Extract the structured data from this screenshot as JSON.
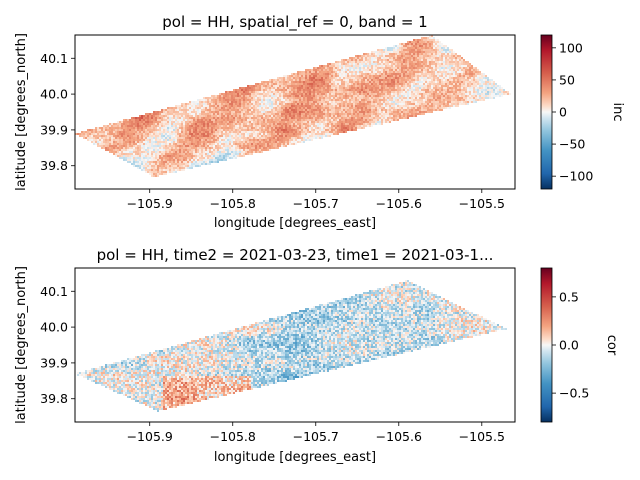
{
  "chart_data": [
    {
      "type": "heatmap",
      "title": "pol = HH, spatial_ref = 0, band = 1",
      "xlabel": "longitude [degrees_east]",
      "ylabel": "latitude [degrees_north]",
      "xlim": [
        -105.99,
        -105.46
      ],
      "ylim": [
        39.735,
        40.165
      ],
      "x_ticks": [
        -105.9,
        -105.8,
        -105.7,
        -105.6,
        -105.5
      ],
      "x_tick_labels": [
        "−105.9",
        "−105.8",
        "−105.7",
        "−105.6",
        "−105.5"
      ],
      "y_ticks": [
        40.1,
        40.0,
        39.9,
        39.8
      ],
      "y_tick_labels": [
        "40.1",
        "40.0",
        "39.9",
        "39.8"
      ],
      "colorbar": {
        "label": "inc",
        "colormap": "RdBu_r",
        "vmin": -120,
        "vmax": 120,
        "ticks": [
          100,
          50,
          0,
          -50,
          -100
        ],
        "tick_labels": [
          "100",
          "50",
          "0",
          "−50",
          "−100"
        ]
      },
      "footprint": [
        [
          -105.99,
          39.89
        ],
        [
          -105.56,
          40.165
        ],
        [
          -105.465,
          40.0
        ],
        [
          -105.895,
          39.768
        ]
      ],
      "colors": {
        "high": "#b2182b",
        "mid": "#f7f7f7",
        "low": "#2166ac"
      }
    },
    {
      "type": "heatmap",
      "title": "pol = HH, time2 = 2021-03-23, time1 = 2021-03-1...",
      "xlabel": "longitude [degrees_east]",
      "ylabel": "latitude [degrees_north]",
      "xlim": [
        -105.99,
        -105.46
      ],
      "ylim": [
        39.735,
        40.165
      ],
      "x_ticks": [
        -105.9,
        -105.8,
        -105.7,
        -105.6,
        -105.5
      ],
      "x_tick_labels": [
        "−105.9",
        "−105.8",
        "−105.7",
        "−105.6",
        "−105.5"
      ],
      "y_ticks": [
        40.1,
        40.0,
        39.9,
        39.8
      ],
      "y_tick_labels": [
        "40.1",
        "40.0",
        "39.9",
        "39.8"
      ],
      "colorbar": {
        "label": "cor",
        "colormap": "RdBu_r",
        "vmin": -0.8,
        "vmax": 0.8,
        "ticks": [
          0.5,
          0.0,
          -0.5
        ],
        "tick_labels": [
          "0.5",
          "0.0",
          "−0.5"
        ]
      },
      "footprint": [
        [
          -105.99,
          39.87
        ],
        [
          -105.59,
          40.13
        ],
        [
          -105.47,
          39.995
        ],
        [
          -105.89,
          39.765
        ]
      ],
      "colors": {
        "high": "#b2182b",
        "mid": "#f7f7f7",
        "low": "#2166ac"
      }
    }
  ]
}
